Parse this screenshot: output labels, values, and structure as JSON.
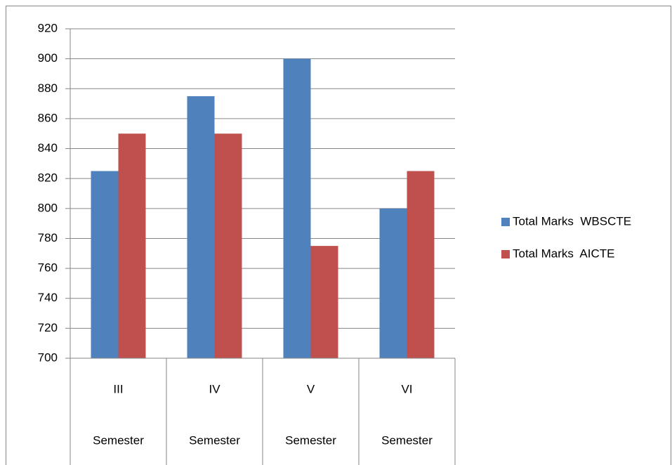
{
  "chart_data": {
    "type": "bar",
    "categories": [
      "III",
      "IV",
      "V",
      "VI"
    ],
    "category_groups": [
      "Semester",
      "Semester",
      "Semester",
      "Semester"
    ],
    "series": [
      {
        "name": "Total Marks  WBSCTE",
        "color": "#4f81bd",
        "values": [
          825,
          875,
          900,
          800
        ]
      },
      {
        "name": "Total Marks  AICTE",
        "color": "#c0504d",
        "values": [
          850,
          850,
          775,
          825
        ]
      }
    ],
    "ylim": [
      700,
      920
    ],
    "yticks": [
      700,
      720,
      740,
      760,
      780,
      800,
      820,
      840,
      860,
      880,
      900,
      920
    ],
    "grid": true,
    "legend": "right"
  }
}
